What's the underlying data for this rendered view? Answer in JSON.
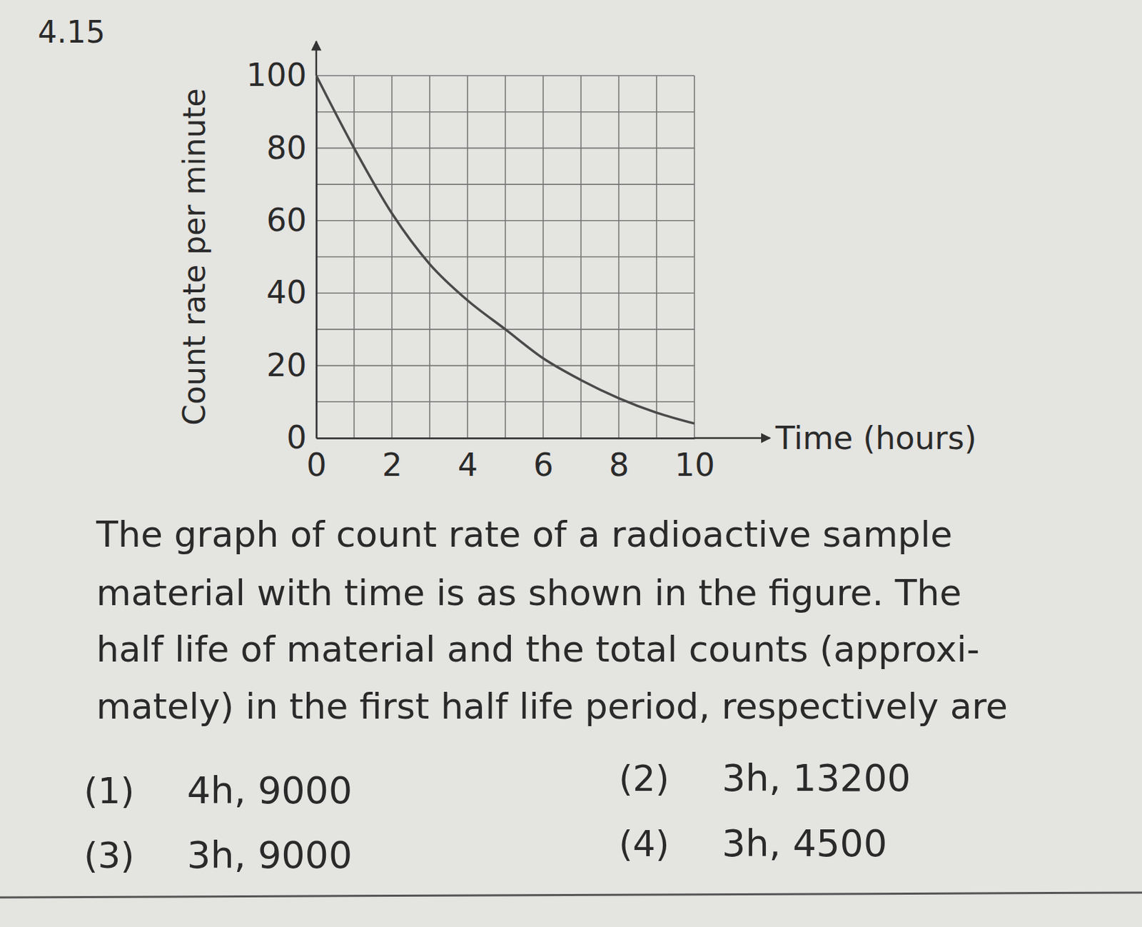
{
  "question": {
    "number": "4.15",
    "text_lines": [
      "The graph of count rate of a radioactive sample",
      "material with time is as shown in the figure. The",
      "half life of material and the total counts (approxi-",
      "mately) in the first half life period, respectively are"
    ],
    "options": [
      {
        "number": "(1)",
        "text": "4h, 9000"
      },
      {
        "number": "(2)",
        "text": "3h, 13200"
      },
      {
        "number": "(3)",
        "text": "3h, 9000"
      },
      {
        "number": "(4)",
        "text": "3h, 4500"
      }
    ]
  },
  "chart_data": {
    "type": "line",
    "x_label": "Time (hours)",
    "y_label": "Count rate per minute",
    "x": [
      0,
      1,
      2,
      3,
      4,
      5,
      6,
      7,
      8,
      9,
      10
    ],
    "series": [
      {
        "name": "Count rate",
        "color": "#4a4a4a",
        "values": [
          100,
          80,
          62,
          48,
          38,
          30,
          22,
          16,
          11,
          7,
          4
        ]
      }
    ],
    "xlim": [
      0,
      10
    ],
    "xticks": [
      0,
      2,
      4,
      6,
      8,
      10
    ],
    "ylim": [
      0,
      100
    ],
    "yticks": [
      0,
      20,
      40,
      60,
      80,
      100
    ],
    "grid": true
  }
}
